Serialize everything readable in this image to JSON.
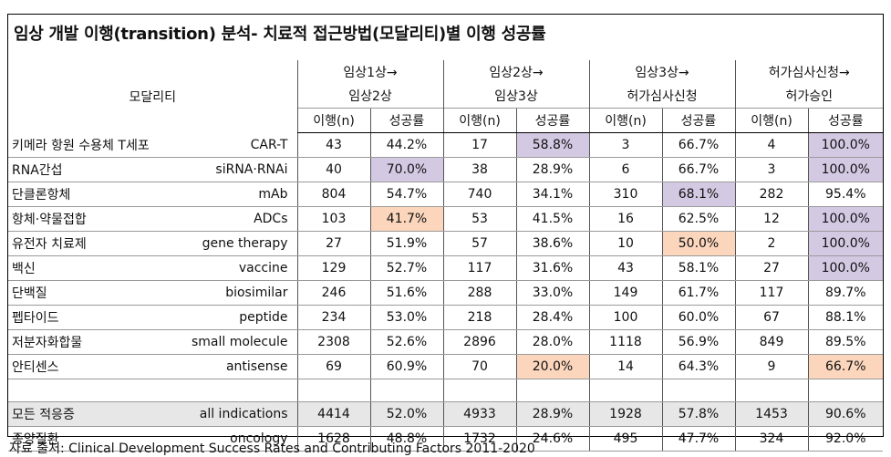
{
  "title": "임상 개발 이행(transition) 분석- 치료적 접근방법(모달리티)별 이행 성공률",
  "modality_header": "모달리티",
  "phases": [
    {
      "line1": "임상1상→",
      "line2": "임상2상"
    },
    {
      "line1": "임상2상→",
      "line2": "임상3상"
    },
    {
      "line1": "임상3상→",
      "line2": "허가심사신청"
    },
    {
      "line1": "허가심사신청→",
      "line2": "허가승인"
    }
  ],
  "col_n": "이행(n)",
  "col_rate": "성공률",
  "rows": [
    {
      "kr": "키메라 항원 수용체 T세포",
      "en": "CAR-T",
      "v": [
        "43",
        "44.2%",
        "17",
        "58.8%",
        "3",
        "66.7%",
        "4",
        "100.0%"
      ],
      "hl": [
        "",
        "",
        "",
        "purple",
        "",
        "",
        "",
        "purple"
      ]
    },
    {
      "kr": "RNA간섭",
      "en": "siRNA·RNAi",
      "v": [
        "40",
        "70.0%",
        "38",
        "28.9%",
        "6",
        "66.7%",
        "3",
        "100.0%"
      ],
      "hl": [
        "",
        "purple",
        "",
        "",
        "",
        "",
        "",
        "purple"
      ]
    },
    {
      "kr": "단클론항체",
      "en": "mAb",
      "v": [
        "804",
        "54.7%",
        "740",
        "34.1%",
        "310",
        "68.1%",
        "282",
        "95.4%"
      ],
      "hl": [
        "",
        "",
        "",
        "",
        "",
        "purple",
        "",
        ""
      ]
    },
    {
      "kr": "항체·약물접합",
      "en": "ADCs",
      "v": [
        "103",
        "41.7%",
        "53",
        "41.5%",
        "16",
        "62.5%",
        "12",
        "100.0%"
      ],
      "hl": [
        "",
        "orange",
        "",
        "",
        "",
        "",
        "",
        "purple"
      ]
    },
    {
      "kr": "유전자 치료제",
      "en": "gene therapy",
      "v": [
        "27",
        "51.9%",
        "57",
        "38.6%",
        "10",
        "50.0%",
        "2",
        "100.0%"
      ],
      "hl": [
        "",
        "",
        "",
        "",
        "",
        "orange",
        "",
        "purple"
      ]
    },
    {
      "kr": "백신",
      "en": "vaccine",
      "v": [
        "129",
        "52.7%",
        "117",
        "31.6%",
        "43",
        "58.1%",
        "27",
        "100.0%"
      ],
      "hl": [
        "",
        "",
        "",
        "",
        "",
        "",
        "",
        "purple"
      ]
    },
    {
      "kr": "단백질",
      "en": "biosimilar",
      "v": [
        "246",
        "51.6%",
        "288",
        "33.0%",
        "149",
        "61.7%",
        "117",
        "89.7%"
      ],
      "hl": [
        "",
        "",
        "",
        "",
        "",
        "",
        "",
        ""
      ]
    },
    {
      "kr": "펩타이드",
      "en": "peptide",
      "v": [
        "234",
        "53.0%",
        "218",
        "28.4%",
        "100",
        "60.0%",
        "67",
        "88.1%"
      ],
      "hl": [
        "",
        "",
        "",
        "",
        "",
        "",
        "",
        ""
      ]
    },
    {
      "kr": "저분자화합물",
      "en": "small molecule",
      "v": [
        "2308",
        "52.6%",
        "2896",
        "28.0%",
        "1118",
        "56.9%",
        "849",
        "89.5%"
      ],
      "hl": [
        "",
        "",
        "",
        "",
        "",
        "",
        "",
        ""
      ]
    },
    {
      "kr": "안티센스",
      "en": "antisense",
      "v": [
        "69",
        "60.9%",
        "70",
        "20.0%",
        "14",
        "64.3%",
        "9",
        "66.7%"
      ],
      "hl": [
        "",
        "",
        "",
        "orange",
        "",
        "",
        "",
        "orange"
      ]
    }
  ],
  "summary_rows": [
    {
      "kr": "모든 적응증",
      "en": "all indications",
      "v": [
        "4414",
        "52.0%",
        "4933",
        "28.9%",
        "1928",
        "57.8%",
        "1453",
        "90.6%"
      ],
      "gray": true
    },
    {
      "kr": "종양질환",
      "en": "oncology",
      "v": [
        "1628",
        "48.8%",
        "1732",
        "24.6%",
        "495",
        "47.7%",
        "324",
        "92.0%"
      ],
      "gray": false
    }
  ],
  "source": "자료 출처: Clinical Development Success Rates and Contributing Factors 2011-2020",
  "colors": {
    "purple": "#d4c9e3",
    "orange": "#fbd6bd",
    "gray": "#e7e7e7"
  }
}
